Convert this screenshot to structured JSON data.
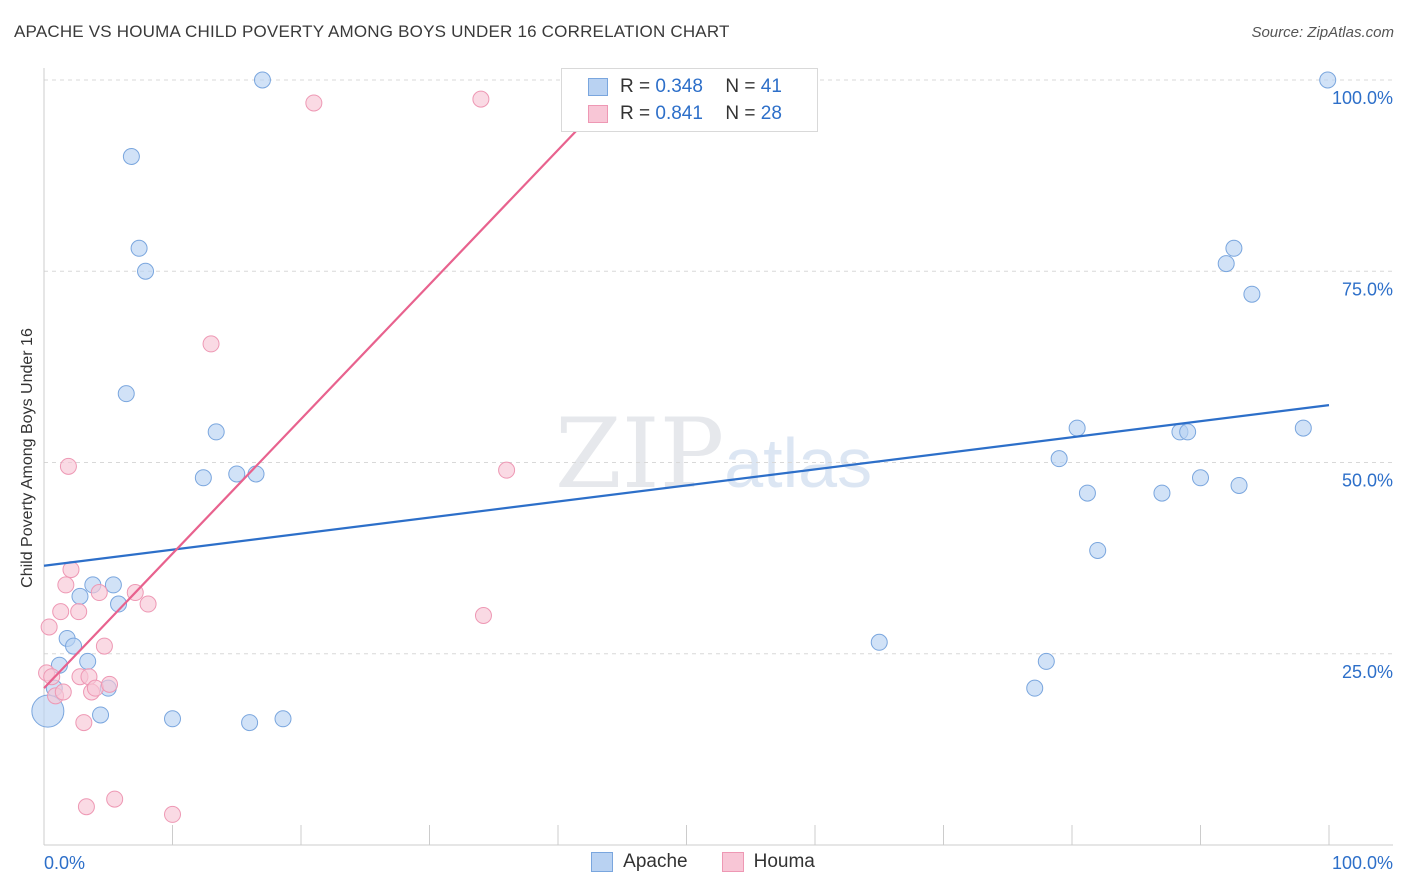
{
  "title": "APACHE VS HOUMA CHILD POVERTY AMONG BOYS UNDER 16 CORRELATION CHART",
  "source": "Source: ZipAtlas.com",
  "watermark": {
    "zip": "ZIP",
    "atlas": "atlas"
  },
  "colors": {
    "apache_fill": "#b9d2f2",
    "apache_stroke": "#7aa6de",
    "apache_line": "#2d6fc9",
    "houma_fill": "#f8c6d6",
    "houma_stroke": "#ee98b4",
    "houma_line": "#e8628e",
    "grid": "#d8d8d8",
    "axis_text": "#2d6fc9"
  },
  "legend_top": {
    "apache": {
      "r_label": "R =",
      "r_value": "0.348",
      "n_label": "N =",
      "n_value": "41"
    },
    "houma": {
      "r_label": "R =",
      "r_value": "0.841",
      "n_label": "N =",
      "n_value": "28"
    }
  },
  "legend_bottom": {
    "apache": "Apache",
    "houma": "Houma"
  },
  "chart_data": {
    "type": "scatter",
    "xlabel": "",
    "ylabel": "Child Poverty Among Boys Under 16",
    "xlim": [
      0,
      100
    ],
    "ylim": [
      0,
      100
    ],
    "x_tick_labels": [
      "0.0%",
      "100.0%"
    ],
    "y_tick_labels": [
      {
        "value": 25,
        "label": "25.0%"
      },
      {
        "value": 50,
        "label": "50.0%"
      },
      {
        "value": 75,
        "label": "75.0%"
      },
      {
        "value": 100,
        "label": "100.0%"
      }
    ],
    "series": [
      {
        "name": "Apache",
        "points": [
          [
            0.3,
            17.5
          ],
          [
            0.8,
            20.5
          ],
          [
            1.2,
            23.5
          ],
          [
            1.8,
            27
          ],
          [
            2.3,
            26
          ],
          [
            2.8,
            32.5
          ],
          [
            3.4,
            24
          ],
          [
            3.8,
            34
          ],
          [
            4.4,
            17
          ],
          [
            5.0,
            20.5
          ],
          [
            5.4,
            34
          ],
          [
            5.8,
            31.5
          ],
          [
            6.4,
            59
          ],
          [
            6.8,
            90
          ],
          [
            7.4,
            78
          ],
          [
            7.9,
            75
          ],
          [
            10.0,
            16.5
          ],
          [
            12.4,
            48
          ],
          [
            13.4,
            54
          ],
          [
            15.0,
            48.5
          ],
          [
            16.0,
            16
          ],
          [
            16.5,
            48.5
          ],
          [
            17.0,
            100
          ],
          [
            18.6,
            16.5
          ],
          [
            65.0,
            26.5
          ],
          [
            77.1,
            20.5
          ],
          [
            78.0,
            24
          ],
          [
            79.0,
            50.5
          ],
          [
            80.4,
            54.5
          ],
          [
            81.2,
            46
          ],
          [
            82.0,
            38.5
          ],
          [
            87.0,
            46
          ],
          [
            88.4,
            54
          ],
          [
            89.0,
            54
          ],
          [
            90.0,
            48
          ],
          [
            92.0,
            76
          ],
          [
            92.6,
            78
          ],
          [
            93.0,
            47
          ],
          [
            94.0,
            72
          ],
          [
            98.0,
            54.5
          ],
          [
            99.9,
            100
          ]
        ],
        "trend": {
          "x": [
            0,
            100
          ],
          "y": [
            36.5,
            57.5
          ]
        }
      },
      {
        "name": "Houma",
        "points": [
          [
            0.2,
            22.5
          ],
          [
            0.4,
            28.5
          ],
          [
            0.6,
            22
          ],
          [
            0.9,
            19.5
          ],
          [
            1.3,
            30.5
          ],
          [
            1.5,
            20
          ],
          [
            1.7,
            34
          ],
          [
            1.9,
            49.5
          ],
          [
            2.1,
            36
          ],
          [
            2.7,
            30.5
          ],
          [
            2.8,
            22
          ],
          [
            3.1,
            16
          ],
          [
            3.3,
            5
          ],
          [
            3.5,
            22
          ],
          [
            3.7,
            20
          ],
          [
            4.0,
            20.5
          ],
          [
            4.3,
            33
          ],
          [
            4.7,
            26
          ],
          [
            5.1,
            21
          ],
          [
            5.5,
            6
          ],
          [
            7.1,
            33
          ],
          [
            8.1,
            31.5
          ],
          [
            10.0,
            4
          ],
          [
            13.0,
            65.5
          ],
          [
            21.0,
            97
          ],
          [
            34.0,
            97.5
          ],
          [
            34.2,
            30
          ],
          [
            36.0,
            49
          ]
        ],
        "trend": {
          "x": [
            0,
            45.2
          ],
          "y": [
            20.5,
            100
          ]
        }
      }
    ]
  }
}
